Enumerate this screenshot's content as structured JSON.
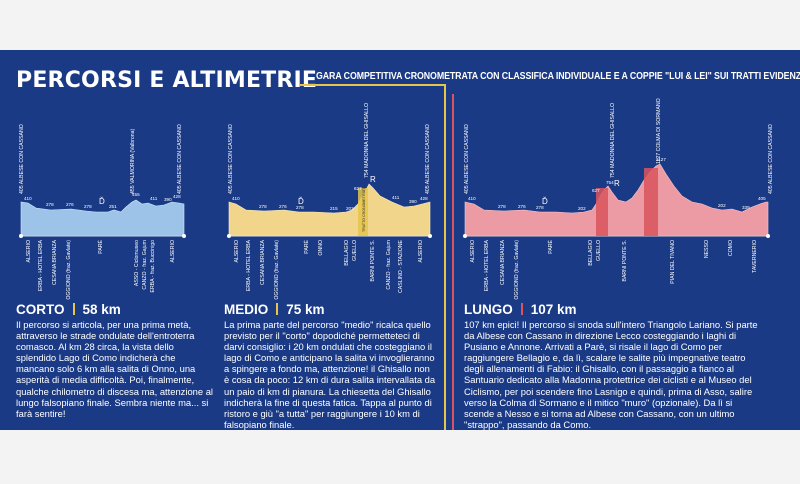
{
  "title": "PERCORSI E ALTIMETRIE",
  "subtitle": "GARA COMPETITIVA CRONOMETRATA CON CLASSIFICA INDIVIDUALE E A COPPIE \"LUI & LEI\" SUI TRATTI EVIDENZIATI",
  "colors": {
    "background": "#1a3a86",
    "corto": "#9dc4e8",
    "medio": "#f0d58a",
    "lungo": "#ec9aa3",
    "accent_yellow": "#e6c54a",
    "accent_red": "#d9555e"
  },
  "corto": {
    "name": "CORTO",
    "distance": "58 km",
    "start_label": "405 ALBESE CON CASSANO",
    "end_label": "405 ALBESE CON CASSANO",
    "peak_label": "455 VALMORINA (Valbrona)",
    "places": [
      "ALSERIO",
      "ERBA - HOTEL ERBA",
      "CESANA BRIANZA",
      "OGGIONO (fraz. Gavlate)",
      "PARÈ",
      "ASSO - Ciclomuseo",
      "CANZO - fraz. Gajum",
      "ERBA - fraz. Buccinigo",
      "ALSERIO"
    ],
    "elevations": [
      "410",
      "278",
      "276",
      "278",
      "251",
      "455",
      "411",
      "390",
      "428"
    ],
    "description": "Il percorso si articola, per una prima metà, attraverso le strade ondulate dell'entroterra comasco. Al km 28 circa, la vista dello splendido Lago di Como indicherà che mancano solo 6 km alla salita di Onno, una asperità di media difficoltà. Poi, finalmente, qualche chilometro di discesa ma, attenzione al lungo falsopiano finale. Sembra niente ma... si farà sentire!"
  },
  "medio": {
    "name": "MEDIO",
    "distance": "75 km",
    "start_label": "405 ALBESE CON CASSANO",
    "end_label": "405 ALBESE CON CASSANO",
    "peak_label": "754 MADONNA DEL GHISALLO",
    "climb_label": "TRATTO CRONOMETRATO",
    "places": [
      "ALSERIO",
      "ERBA - HOTEL ERBA",
      "CESANA BRIANZA",
      "OGGIONO (fraz. Gavlate)",
      "PARÈ",
      "ONNO",
      "BELLAGIO",
      "GUELLO",
      "BARNI PONTE S.",
      "CANZO - fraz. Gajum",
      "CASLINO - STAZIONE",
      "ALSERIO"
    ],
    "elevations": [
      "410",
      "278",
      "276",
      "278",
      "215",
      "202",
      "627",
      "411",
      "390",
      "428"
    ],
    "description": "La prima parte del percorso \"medio\" ricalca quello previsto per il \"corto\" dopodiché permetteteci di darvi consiglio: i 20 km ondulati che costeggiano il lago di Como e anticipano la salita vi invoglieranno a spingere a fondo ma, attenzione! il Ghisallo non è cosa da poco: 12 km di dura salita intervallata da un paio di km di pianura. La chiesetta del Ghisallo indicherà la fine di questa fatica. Tappa al punto di ristoro e giù \"a tutta\" per raggiungere i 10 km di falsopiano finale."
  },
  "lungo": {
    "name": "LUNGO",
    "distance": "107 km",
    "start_label": "405 ALBESE CON CASSANO",
    "end_label": "405 ALBESE CON CASSANO",
    "peak_label": "1127 COLMA DI SORMANO",
    "peak2_label": "754 MADONNA DEL GHISALLO",
    "places": [
      "ALSERIO",
      "ERBA - HOTEL ERBA",
      "CESANA BRIANZA",
      "OGGIONO (fraz. Gavlate)",
      "PARÈ",
      "BELLAGIO",
      "GUELLO",
      "BARNI PONTE S.",
      "PIAN DEL TIVANO",
      "NESSO",
      "COMO",
      "TAVERNERIO"
    ],
    "elevations": [
      "410",
      "278",
      "276",
      "278",
      "202",
      "627",
      "754",
      "1127",
      "202",
      "339",
      "405"
    ],
    "description": "107 km epici! Il percorso si snoda sull'intero Triangolo Lariano. Si parte da Albese con Cassano in direzione Lecco costeggiando i laghi di Pusiano e Annone. Arrivati a Parè, si risale il lago di Como per raggiungere Bellagio e, da lì, scalare le salite più impegnative teatro degli allenamenti di Fabio: il Ghisallo, con il passaggio a fianco al Santuario dedicato alla Madonna protettrice dei ciclisti e al Museo del Ciclismo, per poi scendere fino Lasnigo e quindi, prima di Asso, salire verso la Colma di Sormano e il mitico \"muro\" (opzionale). Da lì si scende a Nesso e si torna ad Albese con Cassano, con un ultimo \"strappo\", passando da Como."
  }
}
